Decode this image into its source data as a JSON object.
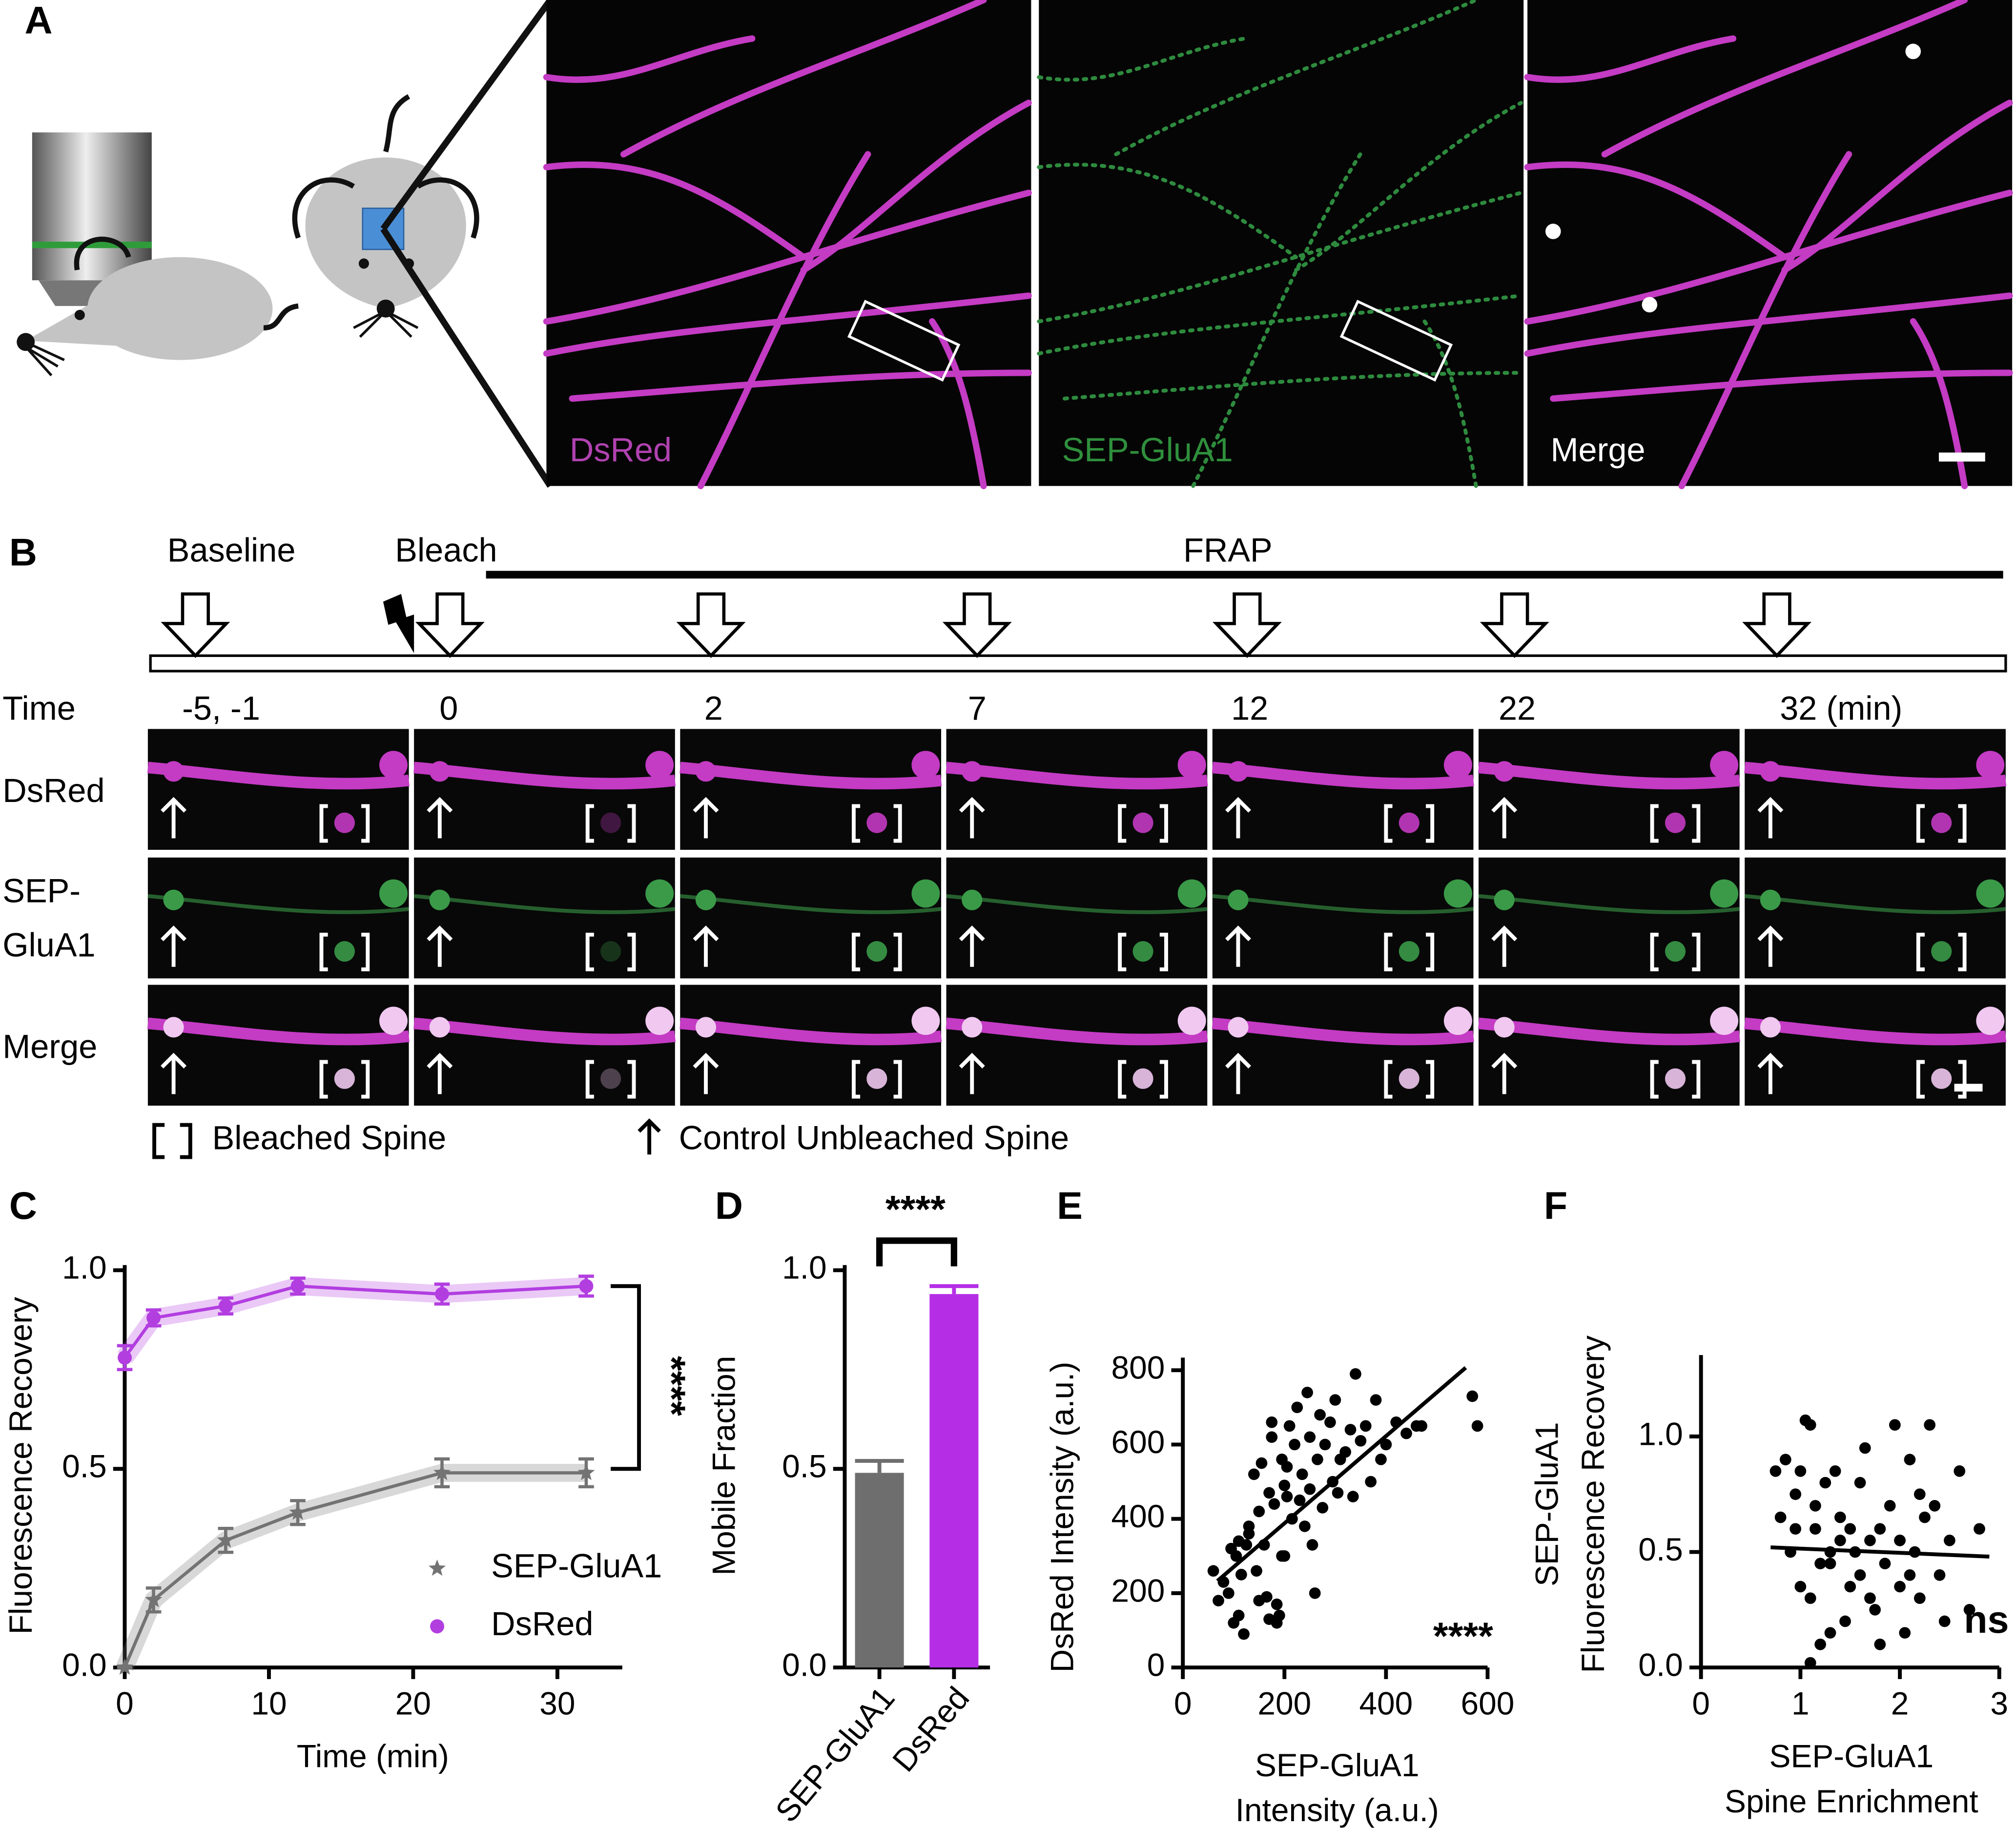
{
  "panel_labels": [
    "A",
    "B",
    "C",
    "D",
    "E",
    "F"
  ],
  "panel_a": {
    "channels": [
      "DsRed",
      "SEP-GluA1",
      "Merge"
    ]
  },
  "panel_b": {
    "phases": [
      "Baseline",
      "Bleach",
      "FRAP"
    ],
    "time_label": "Time",
    "times": [
      "-5, -1",
      "0",
      "2",
      "7",
      "12",
      "22",
      "32 (min)"
    ],
    "rows": [
      "DsRed",
      [
        "SEP-",
        "GluA1"
      ],
      "Merge"
    ],
    "legend": [
      "Bleached Spine",
      "Control Unbleached Spine"
    ]
  },
  "chart_data": [
    {
      "type": "line",
      "x": [
        0,
        2,
        7,
        12,
        22,
        32
      ],
      "series": [
        {
          "name": "SEP-GluA1",
          "color": "#737373",
          "marker": "star",
          "values": [
            0,
            0.17,
            0.32,
            0.39,
            0.49,
            0.49
          ],
          "errors": [
            0,
            0.03,
            0.03,
            0.03,
            0.035,
            0.035
          ]
        },
        {
          "name": "DsRed",
          "color": "#b23ee0",
          "marker": "circle",
          "values": [
            0.78,
            0.88,
            0.91,
            0.96,
            0.94,
            0.96
          ],
          "errors": [
            0.03,
            0.02,
            0.02,
            0.02,
            0.025,
            0.025
          ]
        }
      ],
      "xlabel": "Time (min)",
      "ylabel": "Fluorescence Recovery",
      "xlim": [
        0,
        34.5
      ],
      "ylim": [
        0,
        1
      ],
      "xticks": [
        0,
        10,
        20,
        30
      ],
      "yticks": [
        {
          "value": 0,
          "label": "0.0"
        },
        {
          "value": 0.5,
          "label": "0.5"
        },
        {
          "value": 1,
          "label": "1.0"
        }
      ],
      "annotation": "****"
    },
    {
      "type": "bar",
      "categories": [
        "SEP-GluA1",
        "DsRed"
      ],
      "values": [
        0.49,
        0.94
      ],
      "errors": [
        0.03,
        0.02
      ],
      "colors": [
        "#6e6e6e",
        "#b52ee6"
      ],
      "ylabel": "Mobile Fraction",
      "ylim": [
        0,
        1
      ],
      "yticks": [
        {
          "value": 0,
          "label": "0.0"
        },
        {
          "value": 0.5,
          "label": "0.5"
        },
        {
          "value": 1,
          "label": "1.0"
        }
      ],
      "annotation": "****"
    },
    {
      "type": "scatter",
      "x": [
        60,
        70,
        80,
        90,
        95,
        100,
        105,
        110,
        115,
        120,
        125,
        130,
        140,
        145,
        150,
        150,
        155,
        160,
        165,
        170,
        170,
        175,
        180,
        185,
        190,
        195,
        200,
        200,
        205,
        210,
        215,
        220,
        225,
        230,
        235,
        240,
        245,
        250,
        250,
        255,
        260,
        265,
        270,
        275,
        280,
        290,
        295,
        300,
        305,
        310,
        320,
        330,
        335,
        340,
        350,
        360,
        370,
        380,
        390,
        400,
        420,
        440,
        460,
        470,
        570,
        580,
        130,
        110,
        175,
        185,
        195,
        205
      ],
      "values": [
        260,
        180,
        230,
        200,
        320,
        120,
        300,
        340,
        250,
        90,
        330,
        380,
        520,
        260,
        180,
        420,
        550,
        330,
        190,
        130,
        470,
        620,
        440,
        170,
        140,
        560,
        490,
        300,
        540,
        650,
        400,
        600,
        700,
        450,
        520,
        380,
        740,
        480,
        620,
        330,
        200,
        560,
        680,
        430,
        600,
        660,
        500,
        720,
        470,
        560,
        580,
        640,
        460,
        790,
        610,
        650,
        500,
        720,
        560,
        600,
        660,
        630,
        650,
        650,
        730,
        650,
        360,
        140,
        660,
        120,
        300,
        460
      ],
      "color": "#000000",
      "trendline": {
        "x": [
          68,
          557
        ],
        "y": [
          233,
          807
        ]
      },
      "xlabel": [
        "SEP-GluA1",
        "Intensity (a.u.)"
      ],
      "ylabel": [
        "DsRed Intensity (a.u.)"
      ],
      "xlim": [
        0,
        600
      ],
      "ylim": [
        0,
        820
      ],
      "xticks": [
        0,
        200,
        400,
        600
      ],
      "yticks": [
        0,
        200,
        400,
        600,
        800
      ],
      "annotation": "****"
    },
    {
      "type": "scatter",
      "x": [
        0.75,
        0.8,
        0.85,
        0.9,
        0.95,
        1.0,
        1.05,
        1.1,
        1.1,
        1.15,
        1.2,
        1.25,
        1.3,
        1.3,
        1.35,
        1.4,
        1.45,
        1.5,
        1.5,
        1.55,
        1.6,
        1.65,
        1.7,
        1.75,
        1.8,
        1.85,
        1.9,
        1.95,
        2.0,
        2.0,
        2.05,
        2.1,
        2.15,
        2.2,
        2.25,
        2.3,
        2.35,
        2.4,
        2.5,
        2.6,
        2.7,
        2.8,
        1.1,
        1.2,
        1.4,
        1.6,
        1.8,
        2.0,
        2.2,
        1.0,
        1.3,
        1.7,
        2.45,
        1.15,
        0.95,
        2.1
      ],
      "values": [
        0.85,
        0.65,
        0.9,
        0.5,
        0.75,
        0.85,
        1.07,
        0.3,
        1.05,
        0.6,
        0.1,
        0.8,
        0.45,
        0.15,
        0.85,
        0.55,
        0.2,
        0.6,
        0.35,
        0.5,
        0.4,
        0.95,
        0.55,
        0.25,
        0.6,
        0.45,
        0.7,
        1.05,
        0.55,
        0.35,
        0.15,
        0.9,
        0.5,
        0.3,
        0.65,
        1.05,
        0.7,
        0.4,
        0.55,
        0.85,
        0.25,
        0.6,
        0.02,
        0.45,
        0.65,
        0.8,
        0.1,
        0.55,
        0.75,
        0.35,
        0.5,
        0.3,
        0.2,
        0.7,
        0.6,
        0.4
      ],
      "color": "#000000",
      "trendline": {
        "x": [
          0.7,
          2.9
        ],
        "y": [
          0.52,
          0.48
        ]
      },
      "xlabel": [
        "SEP-GluA1",
        "Spine Enrichment"
      ],
      "ylabel": [
        "SEP-GluA1",
        "Fluorescence Recovery"
      ],
      "xlim": [
        0,
        3
      ],
      "ylim": [
        0,
        1.33
      ],
      "xticks": [
        0,
        1,
        2,
        3
      ],
      "yticks": [
        {
          "value": 0,
          "label": "0.0"
        },
        {
          "value": 0.5,
          "label": "0.5"
        },
        {
          "value": 1,
          "label": "1.0"
        }
      ],
      "annotation": "ns"
    }
  ]
}
